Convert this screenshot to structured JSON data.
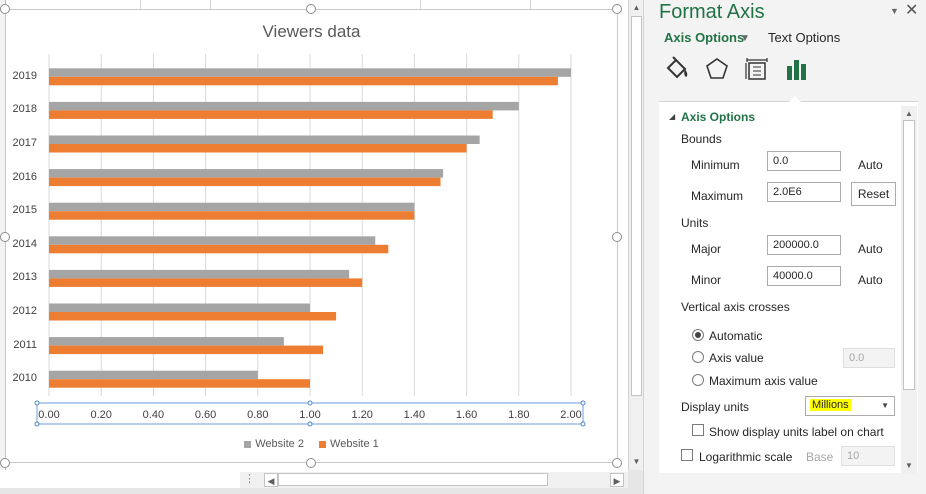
{
  "chart": {
    "title": "Viewers data",
    "legend": [
      {
        "name": "Website 2",
        "color": "#a5a5a5"
      },
      {
        "name": "Website 1",
        "color": "#ed7d31"
      }
    ]
  },
  "chart_data": {
    "type": "bar",
    "orientation": "horizontal",
    "title": "Viewers data",
    "categories": [
      "2010",
      "2011",
      "2012",
      "2013",
      "2014",
      "2015",
      "2016",
      "2017",
      "2018",
      "2019"
    ],
    "series": [
      {
        "name": "Website 2",
        "color": "#a5a5a5",
        "values": [
          0.8,
          0.9,
          1.0,
          1.15,
          1.25,
          1.4,
          1.51,
          1.65,
          1.8,
          2.0
        ]
      },
      {
        "name": "Website 1",
        "color": "#ed7d31",
        "values": [
          1.0,
          1.05,
          1.1,
          1.2,
          1.3,
          1.4,
          1.5,
          1.6,
          1.7,
          1.95
        ]
      }
    ],
    "x_ticks": [
      "0.00",
      "0.20",
      "0.40",
      "0.60",
      "0.80",
      "1.00",
      "1.20",
      "1.40",
      "1.60",
      "1.80",
      "2.00"
    ],
    "xlim": [
      0,
      2
    ],
    "grid": true,
    "legend_position": "bottom"
  },
  "pane": {
    "title": "Format Axis",
    "tab_axis_options": "Axis Options",
    "tab_text_options": "Text Options",
    "icons": [
      "fill-bucket-icon",
      "pentagon-icon",
      "size-properties-icon",
      "bar-chart-icon"
    ],
    "section_title": "Axis Options",
    "bounds_label": "Bounds",
    "minimum_label": "Minimum",
    "minimum_value": "0.0",
    "minimum_state": "Auto",
    "maximum_label": "Maximum",
    "maximum_value": "2.0E6",
    "maximum_reset": "Reset",
    "units_label": "Units",
    "major_label": "Major",
    "major_value": "200000.0",
    "major_state": "Auto",
    "minor_label": "Minor",
    "minor_value": "40000.0",
    "minor_state": "Auto",
    "crosses_label": "Vertical axis crosses",
    "radio_automatic": "Automatic",
    "radio_axis_value": "Axis value",
    "axis_value": "0.0",
    "radio_maximum": "Maximum axis value",
    "display_units_label": "Display units",
    "display_units_value": "Millions",
    "show_units_label": "Show display units label on chart",
    "log_scale_label": "Logarithmic scale",
    "base_label": "Base",
    "base_value": "10"
  }
}
